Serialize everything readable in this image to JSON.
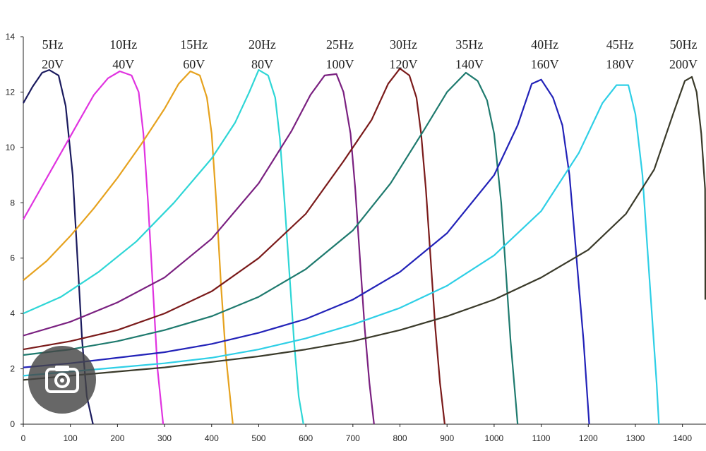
{
  "chart_data": {
    "type": "line",
    "title": "",
    "xlabel": "",
    "ylabel": "",
    "xlim": [
      0,
      1450
    ],
    "ylim": [
      0,
      14
    ],
    "xticks": [
      0,
      100,
      200,
      300,
      400,
      500,
      600,
      700,
      800,
      900,
      1000,
      1100,
      1200,
      1300,
      1400
    ],
    "yticks": [
      0,
      2,
      4,
      6,
      8,
      10,
      12,
      14
    ],
    "grid": false,
    "legend": "none",
    "series": [
      {
        "freq": "5Hz",
        "volt": "20V",
        "color": "#1a1a5e",
        "points": [
          [
            0,
            11.6
          ],
          [
            20,
            12.2
          ],
          [
            40,
            12.7
          ],
          [
            55,
            12.8
          ],
          [
            75,
            12.6
          ],
          [
            90,
            11.5
          ],
          [
            105,
            9.0
          ],
          [
            115,
            6.0
          ],
          [
            125,
            3.0
          ],
          [
            135,
            1.0
          ],
          [
            148,
            0
          ]
        ]
      },
      {
        "freq": "10Hz",
        "volt": "40V",
        "color": "#e033e0",
        "points": [
          [
            0,
            7.4
          ],
          [
            30,
            8.3
          ],
          [
            60,
            9.2
          ],
          [
            90,
            10.1
          ],
          [
            120,
            11.0
          ],
          [
            150,
            11.9
          ],
          [
            180,
            12.5
          ],
          [
            205,
            12.75
          ],
          [
            230,
            12.6
          ],
          [
            245,
            12.0
          ],
          [
            255,
            10.5
          ],
          [
            265,
            8.0
          ],
          [
            275,
            5.0
          ],
          [
            285,
            2.0
          ],
          [
            297,
            0
          ]
        ]
      },
      {
        "freq": "15Hz",
        "volt": "60V",
        "color": "#e6a21e",
        "points": [
          [
            0,
            5.2
          ],
          [
            50,
            5.9
          ],
          [
            100,
            6.8
          ],
          [
            150,
            7.8
          ],
          [
            200,
            8.9
          ],
          [
            250,
            10.1
          ],
          [
            300,
            11.4
          ],
          [
            330,
            12.3
          ],
          [
            355,
            12.75
          ],
          [
            375,
            12.6
          ],
          [
            390,
            11.8
          ],
          [
            400,
            10.5
          ],
          [
            410,
            8.0
          ],
          [
            420,
            5.0
          ],
          [
            430,
            2.5
          ],
          [
            445,
            0
          ]
        ]
      },
      {
        "freq": "20Hz",
        "volt": "80V",
        "color": "#2ed6d6",
        "points": [
          [
            0,
            4.0
          ],
          [
            80,
            4.6
          ],
          [
            160,
            5.5
          ],
          [
            240,
            6.6
          ],
          [
            320,
            8.0
          ],
          [
            400,
            9.6
          ],
          [
            450,
            10.9
          ],
          [
            480,
            12.0
          ],
          [
            500,
            12.8
          ],
          [
            520,
            12.6
          ],
          [
            535,
            11.8
          ],
          [
            545,
            10.3
          ],
          [
            555,
            8.0
          ],
          [
            565,
            5.5
          ],
          [
            575,
            3.0
          ],
          [
            585,
            1.0
          ],
          [
            595,
            0
          ]
        ]
      },
      {
        "freq": "25Hz",
        "volt": "100V",
        "color": "#7a2080",
        "points": [
          [
            0,
            3.2
          ],
          [
            100,
            3.7
          ],
          [
            200,
            4.4
          ],
          [
            300,
            5.3
          ],
          [
            400,
            6.7
          ],
          [
            500,
            8.7
          ],
          [
            570,
            10.6
          ],
          [
            610,
            11.9
          ],
          [
            640,
            12.6
          ],
          [
            665,
            12.65
          ],
          [
            680,
            12.0
          ],
          [
            695,
            10.5
          ],
          [
            705,
            8.5
          ],
          [
            715,
            6.0
          ],
          [
            725,
            3.5
          ],
          [
            735,
            1.5
          ],
          [
            745,
            0
          ]
        ]
      },
      {
        "freq": "30Hz",
        "volt": "120V",
        "color": "#7a1a1a",
        "points": [
          [
            0,
            2.7
          ],
          [
            100,
            3.0
          ],
          [
            200,
            3.4
          ],
          [
            300,
            4.0
          ],
          [
            400,
            4.8
          ],
          [
            500,
            6.0
          ],
          [
            600,
            7.6
          ],
          [
            680,
            9.5
          ],
          [
            740,
            11.0
          ],
          [
            775,
            12.3
          ],
          [
            800,
            12.85
          ],
          [
            820,
            12.6
          ],
          [
            835,
            11.8
          ],
          [
            845,
            10.5
          ],
          [
            855,
            8.5
          ],
          [
            865,
            6.0
          ],
          [
            875,
            3.5
          ],
          [
            885,
            1.5
          ],
          [
            895,
            0
          ]
        ]
      },
      {
        "freq": "35Hz",
        "volt": "140V",
        "color": "#1e7a6e",
        "points": [
          [
            0,
            2.5
          ],
          [
            100,
            2.7
          ],
          [
            200,
            3.0
          ],
          [
            300,
            3.4
          ],
          [
            400,
            3.9
          ],
          [
            500,
            4.6
          ],
          [
            600,
            5.6
          ],
          [
            700,
            7.0
          ],
          [
            780,
            8.7
          ],
          [
            850,
            10.6
          ],
          [
            900,
            12.0
          ],
          [
            940,
            12.7
          ],
          [
            965,
            12.4
          ],
          [
            985,
            11.7
          ],
          [
            1000,
            10.5
          ],
          [
            1015,
            8.0
          ],
          [
            1025,
            5.5
          ],
          [
            1035,
            3.0
          ],
          [
            1045,
            1.0
          ],
          [
            1050,
            0
          ]
        ]
      },
      {
        "freq": "40Hz",
        "volt": "160V",
        "color": "#2222b8",
        "points": [
          [
            0,
            2.05
          ],
          [
            100,
            2.2
          ],
          [
            200,
            2.4
          ],
          [
            300,
            2.6
          ],
          [
            400,
            2.9
          ],
          [
            500,
            3.3
          ],
          [
            600,
            3.8
          ],
          [
            700,
            4.5
          ],
          [
            800,
            5.5
          ],
          [
            900,
            6.9
          ],
          [
            1000,
            9.0
          ],
          [
            1050,
            10.8
          ],
          [
            1080,
            12.3
          ],
          [
            1100,
            12.45
          ],
          [
            1125,
            11.8
          ],
          [
            1145,
            10.8
          ],
          [
            1160,
            9.0
          ],
          [
            1170,
            7.0
          ],
          [
            1180,
            5.0
          ],
          [
            1190,
            3.0
          ],
          [
            1198,
            1.0
          ],
          [
            1202,
            0
          ]
        ]
      },
      {
        "freq": "45Hz",
        "volt": "180V",
        "color": "#2ecfe6",
        "points": [
          [
            0,
            1.75
          ],
          [
            100,
            1.9
          ],
          [
            200,
            2.05
          ],
          [
            300,
            2.2
          ],
          [
            400,
            2.4
          ],
          [
            500,
            2.7
          ],
          [
            600,
            3.1
          ],
          [
            700,
            3.6
          ],
          [
            800,
            4.2
          ],
          [
            900,
            5.0
          ],
          [
            1000,
            6.1
          ],
          [
            1100,
            7.7
          ],
          [
            1180,
            9.8
          ],
          [
            1230,
            11.6
          ],
          [
            1260,
            12.25
          ],
          [
            1285,
            12.25
          ],
          [
            1300,
            11.2
          ],
          [
            1315,
            9.0
          ],
          [
            1325,
            6.5
          ],
          [
            1335,
            4.0
          ],
          [
            1345,
            1.5
          ],
          [
            1350,
            0
          ]
        ]
      },
      {
        "freq": "50Hz",
        "volt": "200V",
        "color": "#3a3a2a",
        "points": [
          [
            0,
            1.6
          ],
          [
            100,
            1.75
          ],
          [
            200,
            1.9
          ],
          [
            300,
            2.05
          ],
          [
            400,
            2.25
          ],
          [
            500,
            2.45
          ],
          [
            600,
            2.7
          ],
          [
            700,
            3.0
          ],
          [
            800,
            3.4
          ],
          [
            900,
            3.9
          ],
          [
            1000,
            4.5
          ],
          [
            1100,
            5.3
          ],
          [
            1200,
            6.3
          ],
          [
            1280,
            7.6
          ],
          [
            1340,
            9.2
          ],
          [
            1380,
            11.2
          ],
          [
            1405,
            12.4
          ],
          [
            1420,
            12.55
          ],
          [
            1430,
            12.0
          ],
          [
            1440,
            10.5
          ],
          [
            1448,
            8.5
          ],
          [
            1455,
            6.5
          ],
          [
            1460,
            4.5
          ]
        ]
      }
    ]
  },
  "overlay": {
    "icon": "camera-search-icon"
  }
}
